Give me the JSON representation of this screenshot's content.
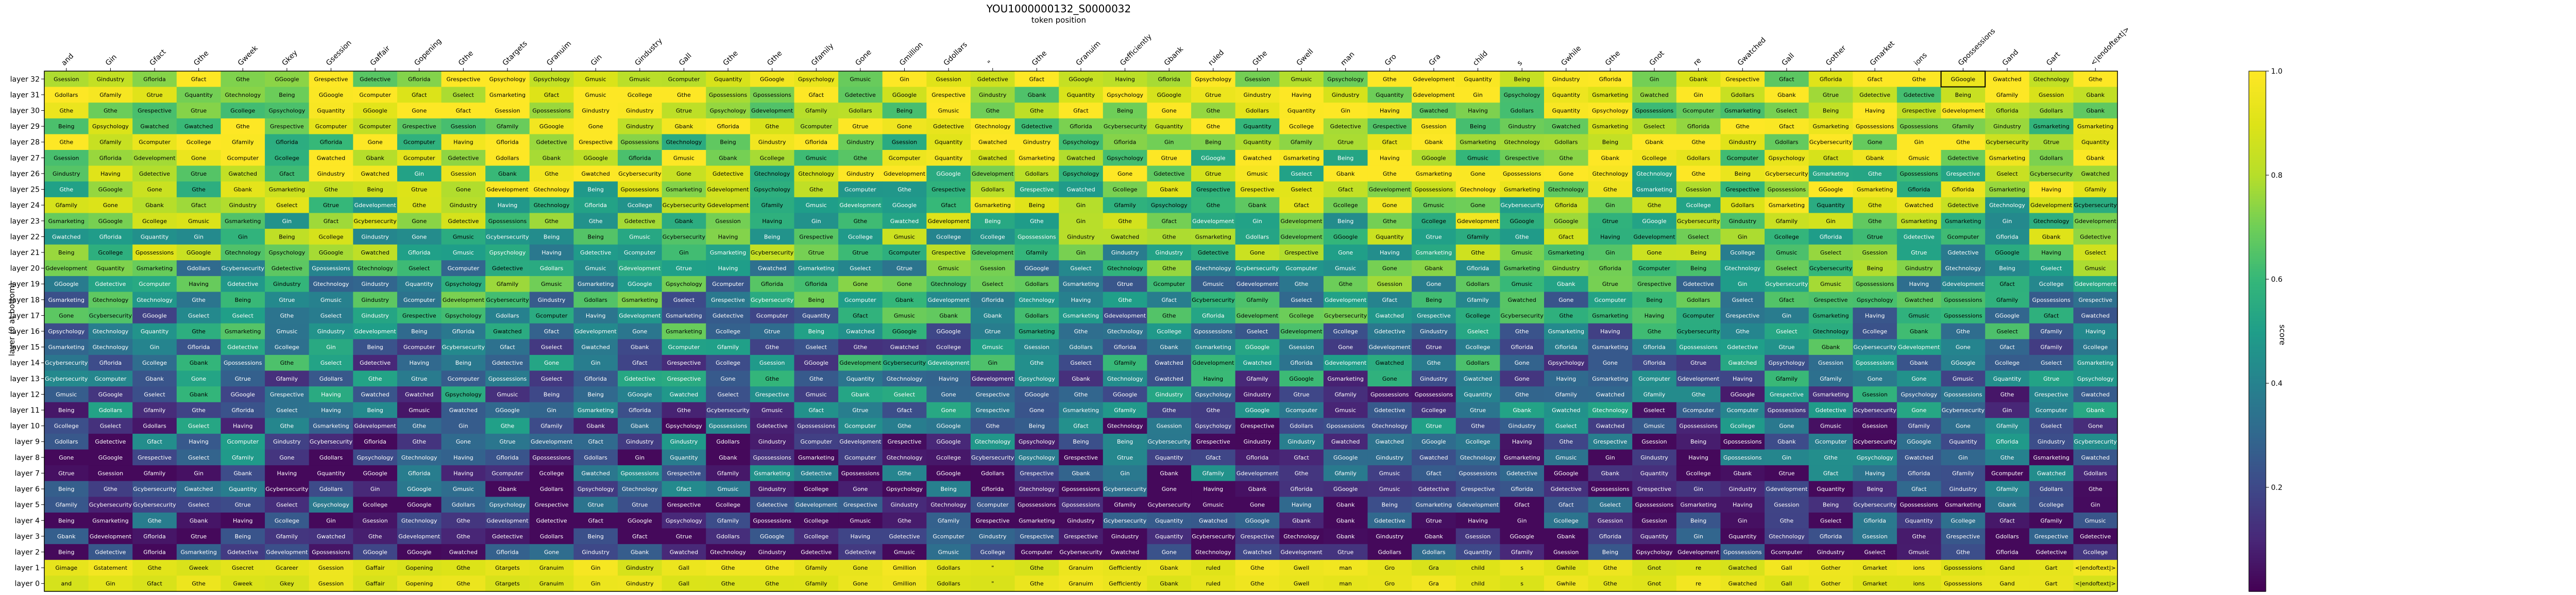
{
  "chart_data": {
    "type": "heatmap",
    "title": "YOU1000000132_S0000032",
    "subtitle": "token position",
    "ylabel": "layer (0 at bottom)",
    "colorbar_label": "score",
    "colorbar_range": [
      0,
      1
    ],
    "colorbar_ticks": [
      "0.2",
      "0.4",
      "0.6",
      "0.8",
      "1.0"
    ],
    "colormap": "viridis",
    "x_tokens": [
      "and",
      "Gin",
      "Gfact",
      "Gthe",
      "Gweek",
      "Gkey",
      "Gsession",
      "Gaffair",
      "Gopening",
      "Gthe",
      "Gtargets",
      "Granuim",
      "Gin",
      "Gindustry",
      "Gall",
      "Gthe",
      "Gthe",
      "Gfamily",
      "Gone",
      "Gmillion",
      "Gdollars",
      "\"",
      "Gthe",
      "Granuim",
      "Gefficiently",
      "Gbank",
      "ruled",
      "Gthe",
      "Gwell",
      "man",
      "Gro",
      "Gra",
      "child",
      "s",
      "Gwhile",
      "Gthe",
      "Gnot",
      "re",
      "Gwatched",
      "Gall",
      "Gother",
      "Gmarket",
      "ions",
      "Gpossessions",
      "Gand",
      "Gart",
      "<|endoftext|>"
    ],
    "y_layers": [
      "layer 32",
      "layer 31",
      "layer 30",
      "layer 29",
      "layer 28",
      "layer 27",
      "layer 26",
      "layer 25",
      "layer 24",
      "layer 23",
      "layer 22",
      "layer 21",
      "layer 20",
      "layer 19",
      "layer 18",
      "layer 17",
      "layer 16",
      "layer 15",
      "layer 14",
      "layer 13",
      "layer 12",
      "layer 11",
      "layer 10",
      "layer 9",
      "layer 8",
      "layer 7",
      "layer 6",
      "layer 5",
      "layer 4",
      "layer 3",
      "layer 2",
      "layer 1",
      "layer 0"
    ],
    "vocab": [
      "Being",
      "GGoogle",
      "Gdetective",
      "Gpsychology",
      "Having",
      "Gmusic",
      "Gtrue",
      "Gtechnology",
      "Gcomputer",
      "Gthe",
      "Gdollars",
      "Gbank",
      "Grespective",
      "Gindustry",
      "Gfamily",
      "Gselect",
      "Gsession",
      "Gquantity",
      "Gcybersecurity",
      "Gpossessions",
      "Gwatched",
      "Gone",
      "Gflorida",
      "Gcollege",
      "Gsmarketing",
      "Gdevelopment",
      "Gfact",
      "Gin",
      "Gthe"
    ],
    "highlight_column": 43,
    "cell_labels": [
      [
        "and",
        "Gin",
        "Gfact",
        "Gthe",
        "Gweek",
        "Gkey",
        "Gsession",
        "Gaffair",
        "Gopening",
        "Gthe",
        "Gtargets",
        "Granuim",
        "Gin",
        "Gindustry",
        "Gall",
        "Gthe",
        "Gthe",
        "Gfamily",
        "Gone",
        "Gmillion",
        "Gdollars",
        "\"",
        "Gthe",
        "Granuim",
        "Gefficiently",
        "Gbank",
        "ruled",
        "Gthe",
        "Gwell",
        "man",
        "Gro",
        "Gra",
        "child",
        "s",
        "Gwhile",
        "Gthe",
        "Gnot",
        "re",
        "Gwatched",
        "Gall",
        "Gother",
        "Gmarket",
        "ions",
        "Gpossessions",
        "Gand",
        "Gart",
        "<|endoftext|>"
      ],
      [
        "Gimage",
        "Gstatement",
        "Gthe",
        "Gweek",
        "Gsecret",
        "Gcareer",
        "Gsession",
        "Gaffair",
        "Gopening",
        "Gthe",
        "Gtargets",
        "Granuim",
        "Gin",
        "Gindustry",
        "Gall",
        "Gthe",
        "Gthe",
        "Gfamily",
        "Gone",
        "Gmillion",
        "Gdollars",
        "\"",
        "Gthe",
        "Granuim",
        "Gefficiently",
        "Gbank",
        "ruled",
        "Gthe",
        "Gwell",
        "man",
        "Gro",
        "Gra",
        "child",
        "s",
        "Gwhile",
        "Gthe",
        "Gnot",
        "re",
        "Gwatched",
        "Gall",
        "Gother",
        "Gmarket",
        "ions",
        "Gpossessions",
        "Gand",
        "Gart",
        "<|endoftext|>"
      ]
    ]
  }
}
